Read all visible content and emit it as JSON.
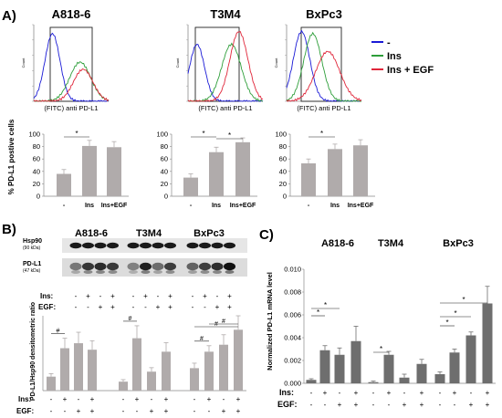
{
  "panels": {
    "A": {
      "letter": "A)",
      "cell_lines": [
        "A818-6",
        "T3M4",
        "BxPc3"
      ],
      "flow_ylabel": "Count",
      "flow_xlabel": "(FITC) anti PD-L1",
      "legend": [
        {
          "label": "-",
          "color": "#1a1ad6"
        },
        {
          "label": "Ins",
          "color": "#2e9e3a"
        },
        {
          "label": "Ins + EGF",
          "color": "#e0263a"
        }
      ],
      "bar_ylabel": "% PD-L1 postive cells",
      "significance": "*"
    },
    "B": {
      "letter": "B)",
      "cell_lines": [
        "A818-6",
        "T3M4",
        "BxPc3"
      ],
      "blot_bands": [
        {
          "label": "Hsp90",
          "kda": "(90 kDa)"
        },
        {
          "label": "PD-L1",
          "kda": "(47 kDa)"
        }
      ],
      "row_labels": [
        "Ins:",
        "EGF:"
      ],
      "bar_ylabel": "PD-L1/Hsp90 densitometric ratio",
      "significance": "#"
    },
    "C": {
      "letter": "C)",
      "cell_lines": [
        "A818-6",
        "T3M4",
        "BxPc3"
      ],
      "row_labels": [
        "Ins:",
        "EGF:"
      ],
      "ylabel": "Normalized PD-L1 mRNA level",
      "significance": "*"
    }
  },
  "chart_data": [
    {
      "type": "bar",
      "panel": "A",
      "cell_line": "A818-6",
      "categories": [
        "-",
        "Ins",
        "Ins+EGF"
      ],
      "values": [
        36,
        81,
        79
      ],
      "errors": [
        7,
        9,
        9
      ],
      "ylim": [
        0,
        100
      ],
      "yticks": [
        0,
        20,
        40,
        60,
        80,
        100
      ],
      "ylabel": "% PD-L1 postive cells",
      "brackets": [
        [
          0,
          1
        ]
      ]
    },
    {
      "type": "bar",
      "panel": "A",
      "cell_line": "T3M4",
      "categories": [
        "-",
        "Ins",
        "Ins+EGF"
      ],
      "values": [
        30,
        71,
        87
      ],
      "errors": [
        6,
        8,
        7
      ],
      "ylim": [
        0,
        100
      ],
      "yticks": [
        0,
        20,
        40,
        60,
        80,
        100
      ],
      "brackets": [
        [
          0,
          1
        ],
        [
          1,
          2
        ]
      ]
    },
    {
      "type": "bar",
      "panel": "A",
      "cell_line": "BxPc3",
      "categories": [
        "-",
        "Ins",
        "Ins+EGF"
      ],
      "values": [
        53,
        76,
        82
      ],
      "errors": [
        7,
        8,
        9
      ],
      "ylim": [
        0,
        100
      ],
      "yticks": [
        0,
        20,
        40,
        60,
        80,
        100
      ],
      "brackets": [
        [
          0,
          1
        ]
      ]
    },
    {
      "type": "bar",
      "panel": "B",
      "cell_lines": [
        "A818-6",
        "T3M4",
        "BxPc3"
      ],
      "ins": [
        "-",
        "+",
        "-",
        "+"
      ],
      "egf": [
        "-",
        "-",
        "+",
        "+"
      ],
      "values": [
        0.28,
        0.85,
        0.95,
        0.82,
        0.18,
        1.05,
        0.38,
        0.78,
        0.45,
        0.78,
        0.92,
        1.22
      ],
      "errors": [
        0.06,
        0.2,
        0.22,
        0.18,
        0.04,
        0.25,
        0.08,
        0.18,
        0.1,
        0.12,
        0.2,
        0.28
      ],
      "ylim": [
        0,
        1.5
      ],
      "brackets": [
        [
          0,
          1
        ],
        [
          4,
          5
        ],
        [
          8,
          9
        ],
        [
          8,
          11
        ],
        [
          9,
          11
        ]
      ]
    },
    {
      "type": "bar",
      "panel": "C",
      "cell_lines": [
        "A818-6",
        "T3M4",
        "BxPc3"
      ],
      "ins": [
        "-",
        "+",
        "-",
        "+"
      ],
      "egf": [
        "-",
        "-",
        "+",
        "+"
      ],
      "values": [
        0.0003,
        0.0029,
        0.0025,
        0.0037,
        0.0001,
        0.0025,
        0.0005,
        0.0017,
        0.0008,
        0.0027,
        0.0042,
        0.007
      ],
      "errors": [
        0.0001,
        0.0004,
        0.0006,
        0.0013,
        0.0001,
        0.0003,
        0.0003,
        0.0004,
        0.0002,
        0.0003,
        0.0003,
        0.0015
      ],
      "ylim": [
        0,
        0.01
      ],
      "yticks": [
        "0.000",
        "0.002",
        "0.004",
        "0.006",
        "0.008",
        "0.010"
      ],
      "brackets": [
        [
          0,
          1
        ],
        [
          0,
          2
        ],
        [
          4,
          5
        ],
        [
          8,
          9
        ],
        [
          8,
          10
        ],
        [
          8,
          11
        ]
      ]
    }
  ]
}
